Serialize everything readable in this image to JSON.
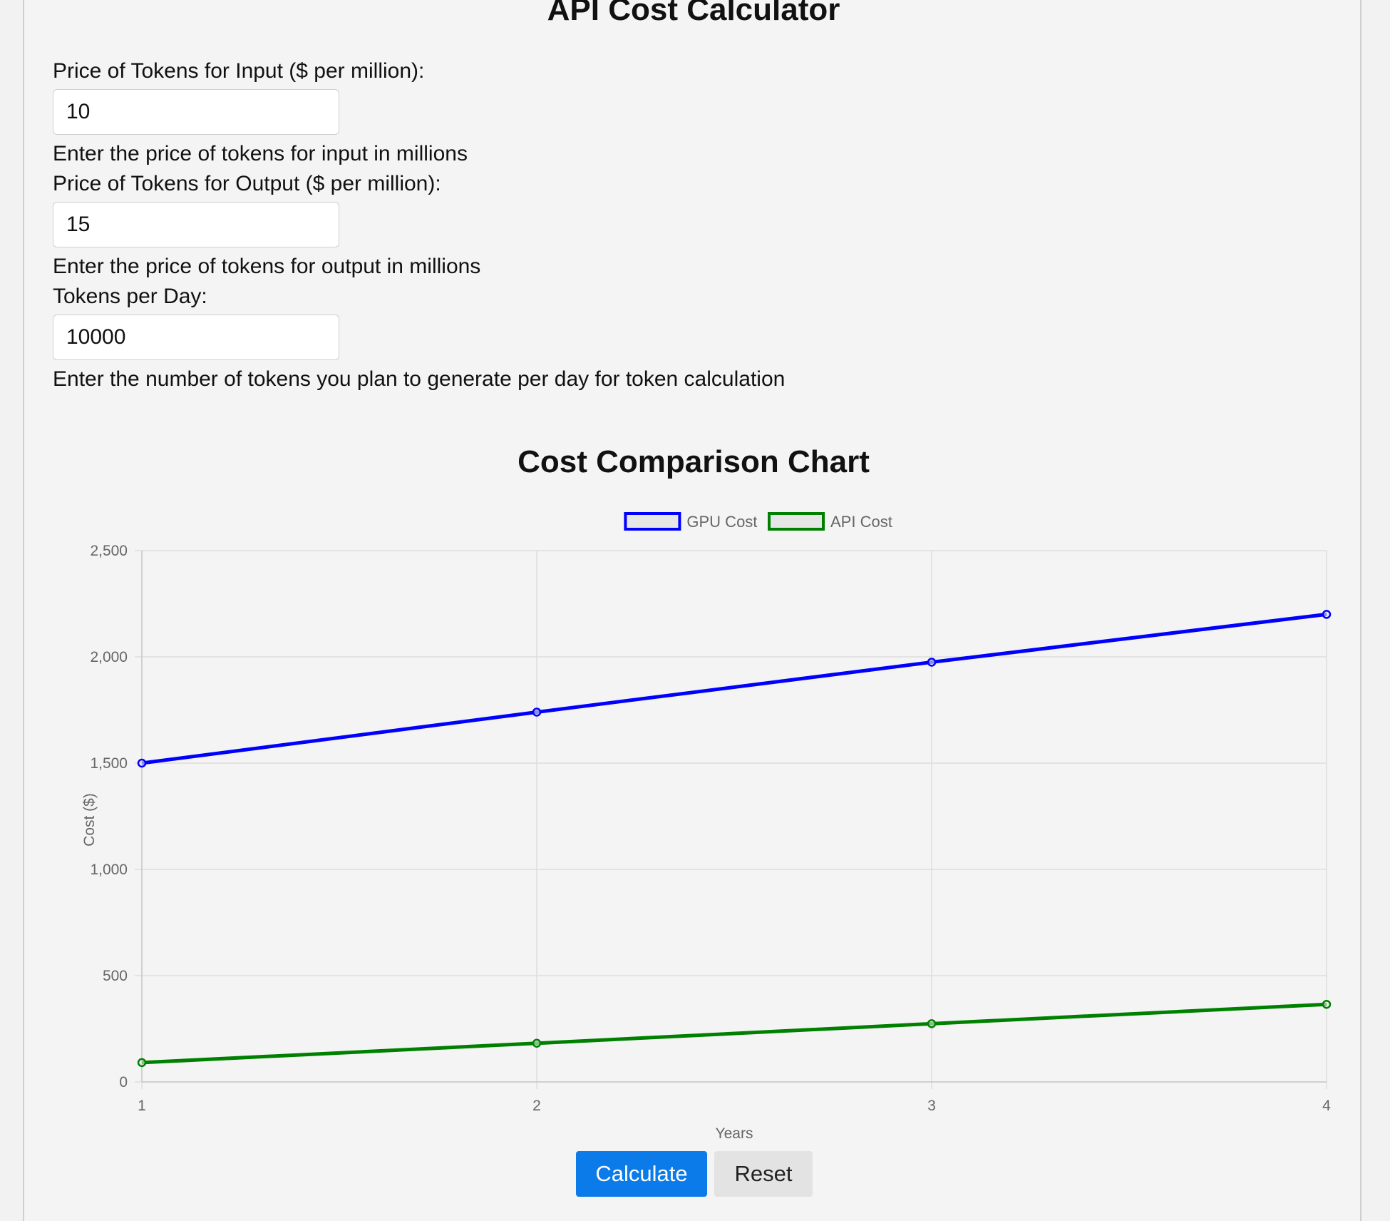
{
  "header": {
    "title": "API Cost Calculator"
  },
  "form": {
    "input_price": {
      "label": "Price of Tokens for Input ($ per million):",
      "value": "10",
      "help": "Enter the price of tokens for input in millions"
    },
    "output_price": {
      "label": "Price of Tokens for Output ($ per million):",
      "value": "15",
      "help": "Enter the price of tokens for output in millions"
    },
    "tokens_per_day": {
      "label": "Tokens per Day:",
      "value": "10000",
      "help": "Enter the number of tokens you plan to generate per day for token calculation"
    }
  },
  "chart_title": "Cost Comparison Chart",
  "chart_data": {
    "type": "line",
    "title": "Cost Comparison Chart",
    "xlabel": "Years",
    "ylabel": "Cost ($)",
    "categories": [
      "1",
      "2",
      "3",
      "4"
    ],
    "series": [
      {
        "name": "GPU Cost",
        "color": "#0000ff",
        "values": [
          1500,
          1740,
          1975,
          2200
        ]
      },
      {
        "name": "API Cost",
        "color": "#008000",
        "values": [
          91,
          182,
          274,
          365
        ]
      }
    ],
    "ylim": [
      0,
      2500
    ],
    "yticks": [
      "0",
      "500",
      "1,000",
      "1,500",
      "2,000",
      "2,500"
    ],
    "grid": true,
    "legend": "top-center"
  },
  "buttons": {
    "calculate": "Calculate",
    "reset": "Reset"
  }
}
